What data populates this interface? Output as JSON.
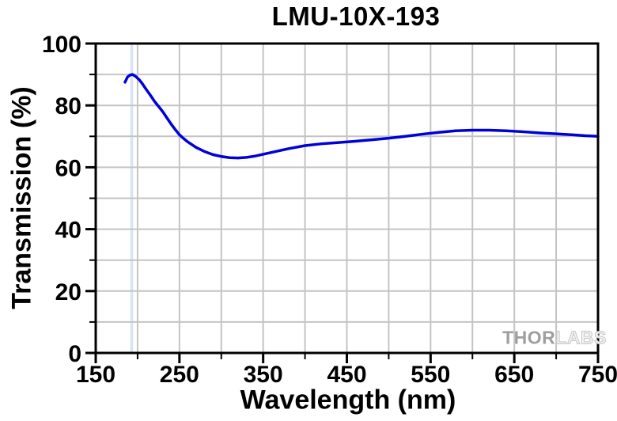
{
  "title": "LMU-10X-193",
  "watermark": {
    "thor": "THOR",
    "labs": "LABS"
  },
  "chart_data": {
    "type": "line",
    "title": "LMU-10X-193",
    "xlabel": "Wavelength (nm)",
    "ylabel": "Transmission (%)",
    "xlim": [
      150,
      750
    ],
    "ylim": [
      0,
      100
    ],
    "x_major_ticks": [
      150,
      250,
      350,
      450,
      550,
      650,
      750
    ],
    "x_minor_ticks": [
      200,
      300,
      400,
      500,
      600,
      700
    ],
    "y_major_ticks": [
      0,
      20,
      40,
      60,
      80,
      100
    ],
    "y_minor_ticks": [
      10,
      30,
      50,
      70,
      90
    ],
    "x_grid_step": 50,
    "y_grid_step": 10,
    "grid": true,
    "legend": "none",
    "colors": {
      "curve": "#0000d9",
      "grid": "#c4c4c4",
      "axis": "#000000",
      "marker_line": "#d9e3f5",
      "background": "#ffffff"
    },
    "annotations": [
      {
        "type": "vline",
        "x": 193,
        "color": "#d9e3f5",
        "label": "193 nm design wavelength marker"
      }
    ],
    "series": [
      {
        "name": "Transmission",
        "color": "#0000d9",
        "x": [
          185,
          188,
          191,
          194,
          198,
          202,
          206,
          210,
          215,
          220,
          225,
          230,
          235,
          240,
          245,
          250,
          255,
          260,
          270,
          280,
          290,
          300,
          310,
          320,
          330,
          340,
          350,
          365,
          380,
          400,
          420,
          440,
          460,
          480,
          500,
          520,
          540,
          560,
          580,
          600,
          620,
          640,
          660,
          680,
          700,
          720,
          735,
          750
        ],
        "y": [
          87.5,
          89.2,
          89.8,
          90,
          89.3,
          88.3,
          86.9,
          85.3,
          83.4,
          81.4,
          79.7,
          78,
          76,
          74,
          72.2,
          70.5,
          69.3,
          68.2,
          66.4,
          65.1,
          64.1,
          63.5,
          63.1,
          63,
          63.2,
          63.6,
          64.2,
          65.1,
          66,
          67,
          67.6,
          68,
          68.4,
          68.9,
          69.4,
          70,
          70.7,
          71.3,
          71.8,
          72,
          72,
          71.8,
          71.5,
          71.1,
          70.8,
          70.5,
          70.2,
          70
        ]
      }
    ]
  }
}
